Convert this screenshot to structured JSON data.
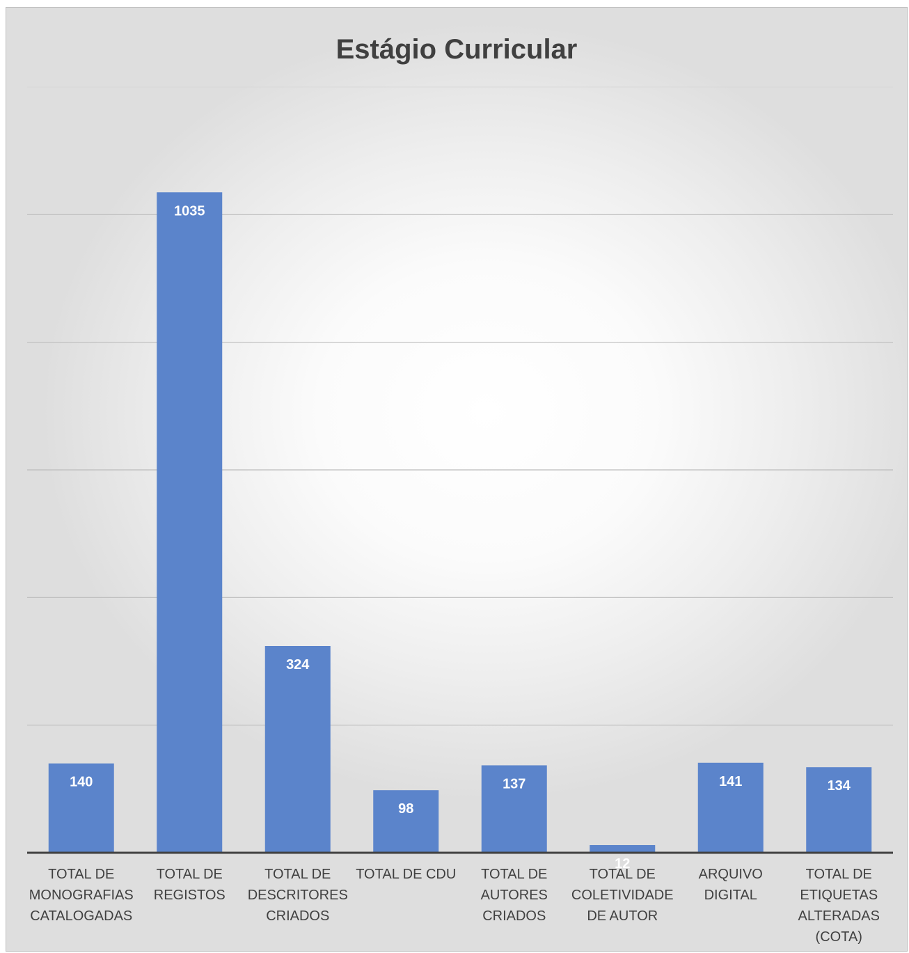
{
  "chart_data": {
    "type": "bar",
    "title": "Estágio Curricular",
    "categories": [
      "TOTAL DE\nMONOGRAFIAS\nCATALOGADAS",
      "TOTAL DE\nREGISTOS",
      "TOTAL DE\nDESCRITORES\nCRIADOS",
      "TOTAL DE CDU",
      "TOTAL DE\nAUTORES\nCRIADOS",
      "TOTAL DE\nCOLETIVIDADE\nDE AUTOR",
      "ARQUIVO\nDIGITAL",
      "TOTAL DE\nETIQUETAS\nALTERADAS\n(COTA)"
    ],
    "values": [
      140,
      1035,
      324,
      98,
      137,
      12,
      141,
      134
    ],
    "ylim": [
      0,
      1200
    ],
    "gridlines": true,
    "data_labels": true,
    "colors": {
      "bar": "#5b84cb",
      "data_label": "#ffffff",
      "grid": "#bcbcbc",
      "axis": "#404040"
    }
  }
}
